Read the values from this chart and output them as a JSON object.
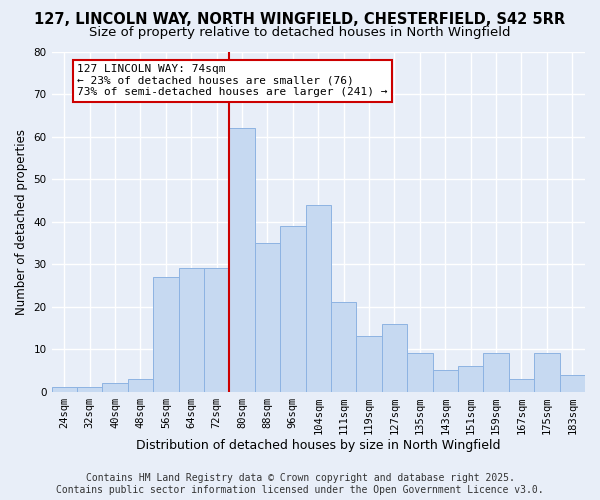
{
  "title": "127, LINCOLN WAY, NORTH WINGFIELD, CHESTERFIELD, S42 5RR",
  "subtitle": "Size of property relative to detached houses in North Wingfield",
  "xlabel": "Distribution of detached houses by size in North Wingfield",
  "ylabel": "Number of detached properties",
  "bar_labels": [
    "24sqm",
    "32sqm",
    "40sqm",
    "48sqm",
    "56sqm",
    "64sqm",
    "72sqm",
    "80sqm",
    "88sqm",
    "96sqm",
    "104sqm",
    "111sqm",
    "119sqm",
    "127sqm",
    "135sqm",
    "143sqm",
    "151sqm",
    "159sqm",
    "167sqm",
    "175sqm",
    "183sqm"
  ],
  "bar_values": [
    1,
    1,
    2,
    3,
    27,
    29,
    29,
    62,
    35,
    39,
    44,
    21,
    13,
    16,
    9,
    5,
    6,
    9,
    3,
    9,
    4
  ],
  "bar_color": "#c6d9f1",
  "bar_edge_color": "#8db3e2",
  "vline_index": 7,
  "vline_color": "#cc0000",
  "annotation_title": "127 LINCOLN WAY: 74sqm",
  "annotation_line1": "← 23% of detached houses are smaller (76)",
  "annotation_line2": "73% of semi-detached houses are larger (241) →",
  "annotation_box_color": "white",
  "annotation_box_edge": "#cc0000",
  "ylim": [
    0,
    80
  ],
  "yticks": [
    0,
    10,
    20,
    30,
    40,
    50,
    60,
    70,
    80
  ],
  "background_color": "#e8eef8",
  "grid_color": "white",
  "footer_line1": "Contains HM Land Registry data © Crown copyright and database right 2025.",
  "footer_line2": "Contains public sector information licensed under the Open Government Licence v3.0.",
  "title_fontsize": 10.5,
  "subtitle_fontsize": 9.5,
  "xlabel_fontsize": 9,
  "ylabel_fontsize": 8.5,
  "tick_fontsize": 7.5,
  "annotation_fontsize": 8,
  "footer_fontsize": 7
}
